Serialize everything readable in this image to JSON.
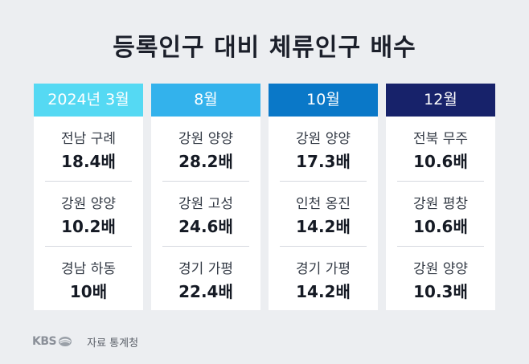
{
  "title": "등록인구 대비 체류인구 배수",
  "columns": [
    {
      "header": "2024년 3월",
      "header_bg": "#55d9f3",
      "header_color": "#ffffff",
      "rows": [
        {
          "region": "전남 구례",
          "value": "18.4배"
        },
        {
          "region": "강원 양양",
          "value": "10.2배"
        },
        {
          "region": "경남 하동",
          "value": "10배"
        }
      ]
    },
    {
      "header": "8월",
      "header_bg": "#33b2ec",
      "header_color": "#ffffff",
      "rows": [
        {
          "region": "강원 양양",
          "value": "28.2배"
        },
        {
          "region": "강원 고성",
          "value": "24.6배"
        },
        {
          "region": "경기 가평",
          "value": "22.4배"
        }
      ]
    },
    {
      "header": "10월",
      "header_bg": "#0a78c8",
      "header_color": "#ffffff",
      "rows": [
        {
          "region": "강원 양양",
          "value": "17.3배"
        },
        {
          "region": "인천 옹진",
          "value": "14.2배"
        },
        {
          "region": "경기 가평",
          "value": "14.2배"
        }
      ]
    },
    {
      "header": "12월",
      "header_bg": "#17226a",
      "header_color": "#ffffff",
      "rows": [
        {
          "region": "전북 무주",
          "value": "10.6배"
        },
        {
          "region": "강원 평창",
          "value": "10.6배"
        },
        {
          "region": "강원 양양",
          "value": "10.3배"
        }
      ]
    }
  ],
  "footer": {
    "logo": "KBS",
    "logo_icon": "kbs-logo-icon",
    "source": "자료 통계청"
  }
}
